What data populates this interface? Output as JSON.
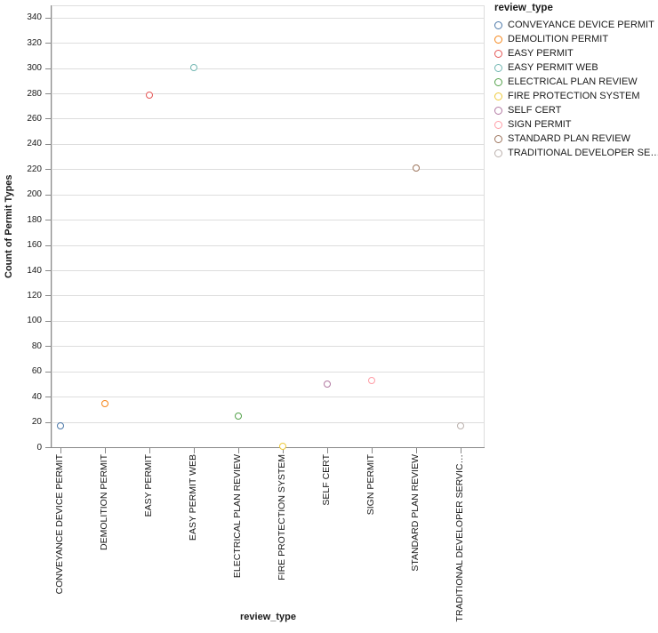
{
  "chart_data": {
    "type": "scatter",
    "title": "",
    "xlabel": "review_type",
    "ylabel": "Count of Permit Types",
    "legend_title": "review_type",
    "legend_position": "right",
    "grid": true,
    "marker": "open-circle",
    "ylim": [
      0,
      350
    ],
    "ytick_step": 20,
    "ytick_max": 340,
    "points": [
      {
        "axis_label": "CONVEYANCE DEVICE PERMIT",
        "legend_label": "CONVEYANCE DEVICE PERMIT",
        "value": 17,
        "color": "#4c78a8"
      },
      {
        "axis_label": "DEMOLITION PERMIT",
        "legend_label": "DEMOLITION PERMIT",
        "value": 35,
        "color": "#f58518"
      },
      {
        "axis_label": "EASY PERMIT",
        "legend_label": "EASY PERMIT",
        "value": 279,
        "color": "#e45756"
      },
      {
        "axis_label": "EASY PERMIT WEB",
        "legend_label": "EASY PERMIT WEB",
        "value": 301,
        "color": "#72b7b2"
      },
      {
        "axis_label": "ELECTRICAL PLAN REVIEW",
        "legend_label": "ELECTRICAL PLAN REVIEW",
        "value": 25,
        "color": "#54a24b"
      },
      {
        "axis_label": "FIRE PROTECTION SYSTEM",
        "legend_label": "FIRE PROTECTION SYSTEM",
        "value": 1,
        "color": "#eeca3b"
      },
      {
        "axis_label": "SELF CERT",
        "legend_label": "SELF CERT",
        "value": 50,
        "color": "#b279a2"
      },
      {
        "axis_label": "SIGN PERMIT",
        "legend_label": "SIGN PERMIT",
        "value": 53,
        "color": "#ff9da6"
      },
      {
        "axis_label": "STANDARD PLAN REVIEW",
        "legend_label": "STANDARD PLAN REVIEW",
        "value": 221,
        "color": "#9d755d"
      },
      {
        "axis_label": "TRADITIONAL DEVELOPER SERVIC…",
        "legend_label": "TRADITIONAL DEVELOPER SE…",
        "value": 17,
        "color": "#bab0ac"
      }
    ]
  },
  "style": {
    "grid_color": "#dddddd",
    "axis_color": "#888888",
    "text_color": "#1a1a1a",
    "background": "#ffffff"
  }
}
